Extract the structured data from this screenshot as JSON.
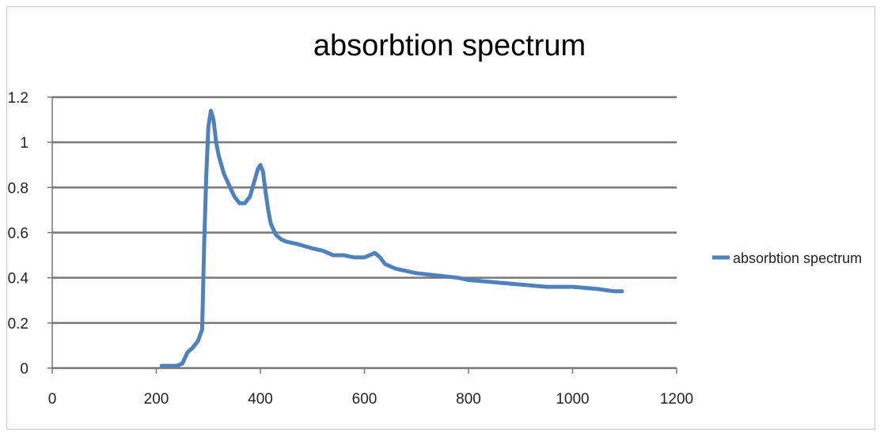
{
  "chart_data": {
    "type": "line",
    "title": "absorbtion spectrum",
    "xlabel": "",
    "ylabel": "",
    "xlim": [
      0,
      1200
    ],
    "ylim": [
      0,
      1.2
    ],
    "x_ticks": [
      "0",
      "200",
      "400",
      "600",
      "800",
      "1000",
      "1200"
    ],
    "y_ticks": [
      "0",
      "0.2",
      "0.4",
      "0.6",
      "0.8",
      "1",
      "1.2"
    ],
    "grid": "horizontal",
    "legend": "right",
    "series": [
      {
        "name": "absorbtion spectrum",
        "color": "#4f81bd",
        "x": [
          210,
          220,
          240,
          250,
          260,
          270,
          280,
          288,
          292,
          296,
          300,
          305,
          310,
          315,
          320,
          330,
          340,
          350,
          360,
          370,
          380,
          390,
          395,
          400,
          405,
          410,
          415,
          420,
          430,
          440,
          450,
          470,
          500,
          520,
          540,
          560,
          580,
          600,
          610,
          620,
          630,
          640,
          660,
          680,
          700,
          740,
          780,
          800,
          850,
          900,
          950,
          1000,
          1050,
          1080,
          1095
        ],
        "values": [
          0.01,
          0.01,
          0.01,
          0.02,
          0.07,
          0.09,
          0.12,
          0.17,
          0.55,
          0.85,
          1.07,
          1.14,
          1.1,
          1.0,
          0.94,
          0.86,
          0.81,
          0.76,
          0.73,
          0.73,
          0.76,
          0.84,
          0.88,
          0.9,
          0.87,
          0.78,
          0.7,
          0.64,
          0.59,
          0.57,
          0.56,
          0.55,
          0.53,
          0.52,
          0.5,
          0.5,
          0.49,
          0.49,
          0.5,
          0.51,
          0.49,
          0.46,
          0.44,
          0.43,
          0.42,
          0.41,
          0.4,
          0.39,
          0.38,
          0.37,
          0.36,
          0.36,
          0.35,
          0.34,
          0.34
        ]
      }
    ]
  }
}
